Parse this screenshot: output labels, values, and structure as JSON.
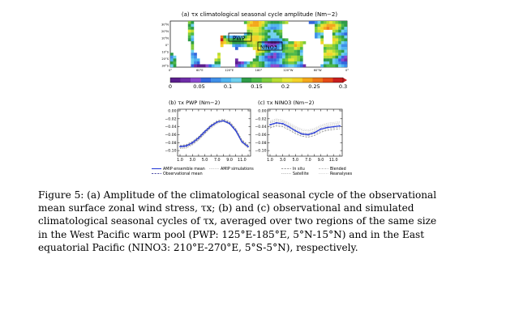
{
  "figure": {
    "panel_a": {
      "title": "(a) τx climatological seasonal cycle amplitude (Nm−2)",
      "lat_labels": [
        "30°N",
        "20°N",
        "10°N",
        "0°",
        "10°S",
        "20°S",
        "30°S"
      ],
      "lon_labels": [
        "0°",
        "60°E",
        "120°E",
        "180°",
        "120°W",
        "60°W",
        "0°"
      ],
      "box_labels": [
        "PWP",
        "NINO3"
      ],
      "colorbar_ticks": [
        "0",
        "0.05",
        "0.1",
        "0.15",
        "0.2",
        "0.25",
        "0.3"
      ],
      "colorbar_colors": [
        "#5a1e8c",
        "#6f2da8",
        "#8a4ad0",
        "#3366dd",
        "#3f8fe8",
        "#4fb4f0",
        "#6fd0ee",
        "#2e9b47",
        "#4cb848",
        "#7fcc3d",
        "#b8dc32",
        "#e6e636",
        "#f4d22a",
        "#f4a81c",
        "#ee7a1a",
        "#e44a18",
        "#c81e1e"
      ]
    },
    "chart_data": [
      {
        "type": "line",
        "title": "(b) τx PWP (Nm−2)",
        "x": [
          1,
          2,
          3,
          4,
          5,
          6,
          7,
          8,
          9,
          10,
          11,
          12
        ],
        "x_tick_labels": [
          "1.0",
          "3.0",
          "5.0",
          "7.0",
          "9.0",
          "11.0"
        ],
        "y_tick_labels": [
          "0.00",
          "−0.02",
          "−0.04",
          "−0.06",
          "−0.08",
          "−0.10"
        ],
        "ylim": [
          -0.11,
          0.0
        ],
        "series": [
          {
            "name": "AMIP ensemble mean",
            "color": "#2b3fd8",
            "style": "solid",
            "values": [
              -0.09,
              -0.088,
              -0.08,
              -0.068,
              -0.052,
              -0.038,
              -0.028,
              -0.025,
              -0.032,
              -0.05,
              -0.078,
              -0.09
            ]
          },
          {
            "name": "Observational mean",
            "color": "#1a1a8c",
            "style": "dashed",
            "values": [
              -0.091,
              -0.09,
              -0.083,
              -0.071,
              -0.056,
              -0.04,
              -0.029,
              -0.024,
              -0.03,
              -0.047,
              -0.076,
              -0.089
            ]
          },
          {
            "name": "AMIP simulations",
            "color": "#9a9a9a",
            "style": "dotted",
            "values": [
              -0.094,
              -0.092,
              -0.084,
              -0.072,
              -0.056,
              -0.041,
              -0.03,
              -0.027,
              -0.034,
              -0.052,
              -0.081,
              -0.093
            ]
          },
          {
            "name": "In situ",
            "color": "#777777",
            "style": "dashed",
            "values": [
              -0.087,
              -0.085,
              -0.077,
              -0.065,
              -0.05,
              -0.035,
              -0.025,
              -0.021,
              -0.027,
              -0.045,
              -0.073,
              -0.086
            ]
          },
          {
            "name": "Satellite",
            "color": "#888888",
            "style": "dotted",
            "values": [
              -0.095,
              -0.094,
              -0.086,
              -0.074,
              -0.058,
              -0.043,
              -0.032,
              -0.026,
              -0.033,
              -0.05,
              -0.079,
              -0.094
            ]
          },
          {
            "name": "Blended",
            "color": "#aaaaaa",
            "style": "dashed",
            "values": [
              -0.089,
              -0.087,
              -0.08,
              -0.067,
              -0.052,
              -0.037,
              -0.027,
              -0.023,
              -0.029,
              -0.046,
              -0.075,
              -0.088
            ]
          },
          {
            "name": "Reanalyses",
            "color": "#bbbbbb",
            "style": "dotted",
            "values": [
              -0.092,
              -0.091,
              -0.082,
              -0.07,
              -0.054,
              -0.039,
              -0.028,
              -0.025,
              -0.031,
              -0.049,
              -0.077,
              -0.091
            ]
          }
        ]
      },
      {
        "type": "line",
        "title": "(c) τx NINO3 (Nm−2)",
        "x": [
          1,
          2,
          3,
          4,
          5,
          6,
          7,
          8,
          9,
          10,
          11,
          12
        ],
        "x_tick_labels": [
          "1.0",
          "3.0",
          "5.0",
          "7.0",
          "9.0",
          "11.0"
        ],
        "y_tick_labels": [
          "0.00",
          "−0.02",
          "−0.04",
          "−0.06",
          "−0.08",
          "−0.10"
        ],
        "ylim": [
          -0.11,
          0.0
        ],
        "series": [
          {
            "name": "AMIP ensemble mean",
            "color": "#2b3fd8",
            "style": "solid",
            "values": [
              -0.035,
              -0.03,
              -0.032,
              -0.04,
              -0.05,
              -0.058,
              -0.06,
              -0.055,
              -0.046,
              -0.042,
              -0.04,
              -0.038
            ]
          },
          {
            "name": "Observational mean",
            "color": "#1a1a8c",
            "style": "dashed",
            "values": [
              -0.036,
              -0.031,
              -0.033,
              -0.041,
              -0.05,
              -0.057,
              -0.059,
              -0.054,
              -0.046,
              -0.041,
              -0.04,
              -0.037
            ]
          },
          {
            "name": "AMIP simulations",
            "color": "#9a9a9a",
            "style": "dotted",
            "values": [
              -0.028,
              -0.022,
              -0.025,
              -0.033,
              -0.042,
              -0.049,
              -0.051,
              -0.047,
              -0.039,
              -0.034,
              -0.032,
              -0.03
            ]
          },
          {
            "name": "In situ",
            "color": "#777777",
            "style": "dashed",
            "values": [
              -0.043,
              -0.038,
              -0.04,
              -0.048,
              -0.057,
              -0.064,
              -0.066,
              -0.062,
              -0.054,
              -0.049,
              -0.047,
              -0.045
            ]
          },
          {
            "name": "Satellite",
            "color": "#888888",
            "style": "dotted",
            "values": [
              -0.03,
              -0.026,
              -0.028,
              -0.036,
              -0.046,
              -0.054,
              -0.056,
              -0.051,
              -0.043,
              -0.038,
              -0.036,
              -0.033
            ]
          },
          {
            "name": "Blended",
            "color": "#aaaaaa",
            "style": "dashed",
            "values": [
              -0.04,
              -0.034,
              -0.036,
              -0.044,
              -0.053,
              -0.06,
              -0.062,
              -0.058,
              -0.05,
              -0.045,
              -0.043,
              -0.041
            ]
          },
          {
            "name": "Reanalyses",
            "color": "#bbbbbb",
            "style": "dotted",
            "values": [
              -0.025,
              -0.02,
              -0.023,
              -0.03,
              -0.039,
              -0.046,
              -0.048,
              -0.044,
              -0.036,
              -0.031,
              -0.029,
              -0.027
            ]
          }
        ]
      }
    ],
    "legend": [
      "AMIP ensemble mean",
      "Observational mean",
      "AMIP simulations",
      "In situ",
      "Satellite",
      "Blended",
      "Reanalyses"
    ]
  },
  "caption": {
    "lines": [
      "Figure 5: (a) Amplitude of the climatological seasonal cycle of the observational",
      "mean surface zonal wind stress, τx; (b) and (c) observational and simulated",
      "climatological seasonal cycles of τx, averaged over two regions of the same size",
      "in the West Pacific warm pool (PWP: 125°E-185°E, 5°N-15°N) and in the East",
      "equatorial Pacific (NINO3: 210°E-270°E, 5°S-5°N), respectively."
    ]
  }
}
